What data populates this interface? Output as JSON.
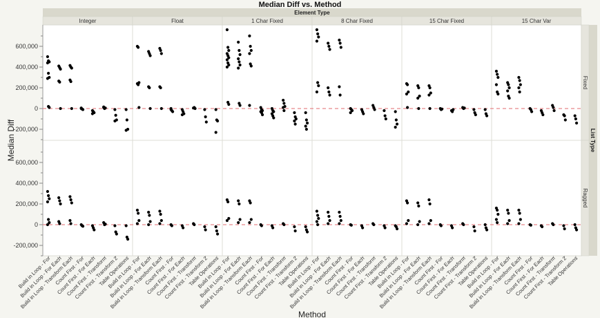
{
  "chart_data": {
    "type": "scatter",
    "title": "Median Diff vs. Method",
    "xlabel": "Method",
    "ylabel": "Median Diff",
    "column_group_label": "Element Type",
    "row_group_label": "List Type",
    "columns": [
      "Integer",
      "Float",
      "1 Char Fixed",
      "8 Char Fixed",
      "15 Char Fixed",
      "15 Char Var"
    ],
    "rows": [
      "Fixed",
      "Ragged"
    ],
    "categories": [
      "Build in Loop - For",
      "Build in Loop - For Each",
      "Build in Loop - Transform Each",
      "Count First - For",
      "Count First - For Each",
      "Count First - Transform",
      "Count First - Transform 2",
      "Table Operations"
    ],
    "y_ticks": [
      -200000,
      0,
      200000,
      400000,
      600000
    ],
    "y_tick_labels": [
      "-200,000",
      "0",
      "200,000",
      "400,000",
      "600,000"
    ],
    "ylim": [
      -300000,
      780000
    ],
    "reference_line": {
      "y": 0,
      "style": "dashed",
      "color": "#e8868a"
    },
    "grid": false,
    "panels": {
      "Fixed": {
        "Integer": {
          "Build in Loop - For": [
            500000,
            460000,
            450000,
            440000,
            340000,
            300000,
            290000,
            20000,
            10000
          ],
          "Build in Loop - For Each": [
            410000,
            395000,
            380000,
            265000,
            255000,
            0
          ],
          "Build in Loop - Transform Each": [
            415000,
            400000,
            390000,
            275000,
            260000,
            0
          ],
          "Count First - For": [
            0,
            -5000,
            -10000,
            5000
          ],
          "Count First - For Each": [
            -20000,
            -30000,
            -40000,
            -50000
          ],
          "Count First - Transform": [
            10000,
            0,
            5000,
            15000
          ],
          "Count First - Transform 2": [
            -10000,
            -65000,
            -110000,
            -120000
          ],
          "Table Operations": [
            -10000,
            -110000,
            -200000,
            -210000
          ]
        },
        "Float": {
          "Build in Loop - For": [
            600000,
            590000,
            250000,
            240000,
            230000,
            10000
          ],
          "Build in Loop - For Each": [
            550000,
            530000,
            510000,
            210000,
            200000,
            0
          ],
          "Build in Loop - Transform Each": [
            580000,
            560000,
            530000,
            210000,
            200000,
            0
          ],
          "Count First - For": [
            -10000,
            -20000,
            -30000,
            0
          ],
          "Count First - For Each": [
            -10000,
            -30000,
            -50000,
            -60000
          ],
          "Count First - Transform": [
            5000,
            10000,
            0
          ],
          "Count First - Transform 2": [
            -10000,
            -80000,
            -130000
          ],
          "Table Operations": [
            -10000,
            -110000,
            -120000,
            -230000
          ]
        },
        "1 Char Fixed": {
          "Build in Loop - For": [
            760000,
            590000,
            560000,
            530000,
            510000,
            490000,
            470000,
            440000,
            420000,
            400000,
            60000,
            40000
          ],
          "Build in Loop - For Each": [
            640000,
            560000,
            520000,
            480000,
            450000,
            420000,
            390000,
            50000,
            30000
          ],
          "Build in Loop - Transform Each": [
            700000,
            600000,
            560000,
            530000,
            430000,
            410000,
            30000
          ],
          "Count First - For": [
            10000,
            -10000,
            -20000,
            -30000,
            -40000,
            -60000
          ],
          "Count First - For Each": [
            0,
            -20000,
            -30000,
            -50000,
            -70000,
            -90000
          ],
          "Count First - Transform": [
            80000,
            50000,
            20000,
            10000,
            -20000
          ],
          "Count First - Transform 2": [
            -40000,
            -80000,
            -100000,
            -120000,
            -150000
          ],
          "Table Operations": [
            -40000,
            -110000,
            -140000,
            -170000,
            -200000
          ]
        },
        "8 Char Fixed": {
          "Build in Loop - For": [
            760000,
            720000,
            690000,
            650000,
            250000,
            220000,
            160000
          ],
          "Build in Loop - For Each": [
            630000,
            600000,
            570000,
            200000,
            160000,
            130000
          ],
          "Build in Loop - Transform Each": [
            660000,
            630000,
            590000,
            210000,
            130000
          ],
          "Count First - For": [
            0,
            -10000,
            -20000,
            -40000
          ],
          "Count First - For Each": [
            -10000,
            -30000,
            -50000
          ],
          "Count First - Transform": [
            30000,
            10000,
            -10000
          ],
          "Count First - Transform 2": [
            -20000,
            -70000,
            -100000
          ],
          "Table Operations": [
            -30000,
            -110000,
            -150000,
            -180000
          ]
        },
        "15 Char Fixed": {
          "Build in Loop - For": [
            240000,
            230000,
            160000,
            140000,
            10000
          ],
          "Build in Loop - For Each": [
            220000,
            200000,
            120000,
            100000,
            0
          ],
          "Build in Loop - Transform Each": [
            220000,
            200000,
            150000,
            130000,
            0
          ],
          "Count First - For": [
            0,
            -10000,
            -5000
          ],
          "Count First - For Each": [
            -20000,
            -30000,
            -10000
          ],
          "Count First - Transform": [
            10000,
            0,
            5000
          ],
          "Count First - Transform 2": [
            -10000,
            -40000,
            -60000
          ],
          "Table Operations": [
            -10000,
            -50000,
            -70000
          ]
        },
        "15 Char Var": {
          "Build in Loop - For": [
            360000,
            330000,
            300000,
            230000,
            160000,
            140000
          ],
          "Build in Loop - For Each": [
            250000,
            230000,
            200000,
            170000,
            120000,
            100000
          ],
          "Build in Loop - Transform Each": [
            300000,
            270000,
            230000,
            200000,
            160000
          ],
          "Count First - For": [
            0,
            -10000,
            -30000
          ],
          "Count First - For Each": [
            -20000,
            -40000,
            -60000
          ],
          "Count First - Transform": [
            30000,
            10000,
            -20000
          ],
          "Count First - Transform 2": [
            -60000,
            -70000,
            -110000
          ],
          "Table Operations": [
            -70000,
            -100000,
            -140000
          ]
        }
      },
      "Ragged": {
        "Integer": {
          "Build in Loop - For": [
            320000,
            280000,
            250000,
            220000,
            50000,
            20000,
            0
          ],
          "Build in Loop - For Each": [
            260000,
            230000,
            200000,
            30000,
            10000
          ],
          "Build in Loop - Transform Each": [
            270000,
            240000,
            210000,
            40000,
            10000
          ],
          "Count First - For": [
            0,
            -10000,
            -15000
          ],
          "Count First - For Each": [
            -10000,
            -30000,
            -50000
          ],
          "Count First - Transform": [
            20000,
            0,
            5000
          ],
          "Count First - Transform 2": [
            -10000,
            -70000,
            -90000
          ],
          "Table Operations": [
            -10000,
            -120000,
            -140000
          ]
        },
        "Float": {
          "Build in Loop - For": [
            140000,
            110000,
            40000,
            10000
          ],
          "Build in Loop - For Each": [
            120000,
            90000,
            30000,
            0
          ],
          "Build in Loop - Transform Each": [
            130000,
            100000,
            40000,
            10000
          ],
          "Count First - For": [
            0,
            -10000
          ],
          "Count First - For Each": [
            -10000,
            -30000
          ],
          "Count First - Transform": [
            10000,
            0
          ],
          "Count First - Transform 2": [
            -20000,
            -50000
          ],
          "Table Operations": [
            -20000,
            -60000,
            -90000
          ]
        },
        "1 Char Fixed": {
          "Build in Loop - For": [
            240000,
            220000,
            60000,
            40000
          ],
          "Build in Loop - For Each": [
            230000,
            200000,
            50000,
            20000
          ],
          "Build in Loop - Transform Each": [
            230000,
            210000,
            50000,
            20000
          ],
          "Count First - For": [
            0,
            -10000
          ],
          "Count First - For Each": [
            -10000,
            -30000
          ],
          "Count First - Transform": [
            10000,
            0
          ],
          "Count First - Transform 2": [
            -20000,
            -60000
          ],
          "Table Operations": [
            -20000,
            -50000,
            -70000
          ]
        },
        "8 Char Fixed": {
          "Build in Loop - For": [
            130000,
            90000,
            60000,
            30000,
            0
          ],
          "Build in Loop - For Each": [
            120000,
            80000,
            40000,
            10000
          ],
          "Build in Loop - Transform Each": [
            120000,
            80000,
            40000,
            10000
          ],
          "Count First - For": [
            0,
            -5000
          ],
          "Count First - For Each": [
            -10000,
            -30000
          ],
          "Count First - Transform": [
            10000,
            0
          ],
          "Count First - Transform 2": [
            -10000,
            -30000
          ],
          "Table Operations": [
            -10000,
            -20000,
            -40000
          ]
        },
        "15 Char Fixed": {
          "Build in Loop - For": [
            230000,
            210000,
            40000,
            10000
          ],
          "Build in Loop - For Each": [
            210000,
            180000,
            30000,
            0
          ],
          "Build in Loop - Transform Each": [
            240000,
            200000,
            40000,
            10000
          ],
          "Count First - For": [
            0,
            -10000
          ],
          "Count First - For Each": [
            -10000,
            -30000
          ],
          "Count First - Transform": [
            10000,
            0
          ],
          "Count First - Transform 2": [
            -20000,
            -60000
          ],
          "Table Operations": [
            0,
            -30000,
            -50000
          ]
        },
        "15 Char Var": {
          "Build in Loop - For": [
            160000,
            140000,
            100000,
            50000,
            20000
          ],
          "Build in Loop - For Each": [
            140000,
            110000,
            40000,
            10000
          ],
          "Build in Loop - Transform Each": [
            140000,
            110000,
            50000,
            10000
          ],
          "Count First - For": [
            0,
            -5000
          ],
          "Count First - For Each": [
            -10000,
            -20000
          ],
          "Count First - Transform": [
            10000,
            0
          ],
          "Count First - Transform 2": [
            -10000,
            -40000
          ],
          "Table Operations": [
            0,
            -30000,
            -50000
          ]
        }
      }
    }
  }
}
